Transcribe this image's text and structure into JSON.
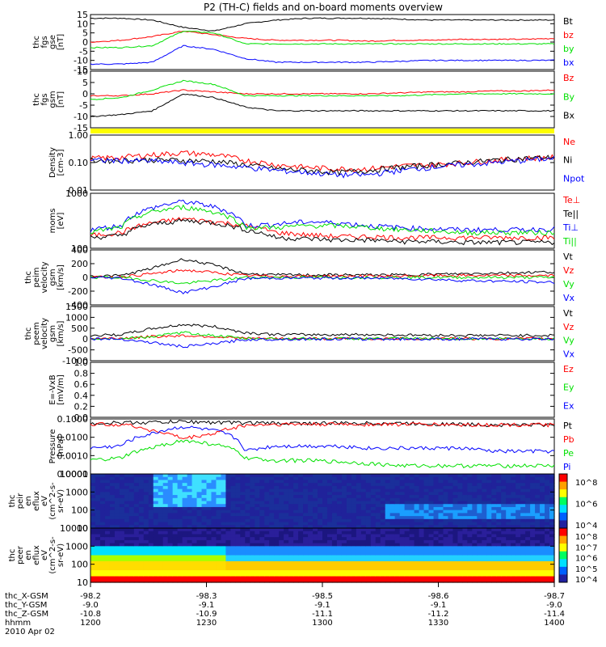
{
  "title": "P2 (TH-C) fields and on-board moments overview",
  "colors": {
    "black": "#000000",
    "red": "#ff0000",
    "green": "#00e000",
    "blue": "#0000ff",
    "yellow": "#ffff00",
    "grid": "#000000"
  },
  "chart_data": [
    {
      "type": "line",
      "ylabel": [
        "thc",
        "fgs",
        "gse",
        "[nT]"
      ],
      "yticks": [
        "15",
        "10",
        "5",
        "0",
        "-5",
        "-10",
        "-15"
      ],
      "ylim": [
        -15,
        15
      ],
      "series": [
        {
          "name": "Bt",
          "color": "black",
          "values": [
            13,
            13,
            12,
            8,
            6,
            10,
            12,
            13,
            13,
            13,
            12.5,
            12,
            12,
            12,
            12,
            12
          ]
        },
        {
          "name": "bz",
          "color": "red",
          "values": [
            0,
            1,
            3,
            6,
            4,
            2,
            1,
            1,
            1,
            0.5,
            1,
            1,
            1.5,
            1.5,
            1.5,
            2
          ]
        },
        {
          "name": "by",
          "color": "green",
          "values": [
            -3,
            -3,
            -2,
            6,
            5,
            -1,
            -1,
            -1,
            -1,
            -1,
            -1,
            -1,
            -1,
            -1,
            -1,
            -1
          ]
        },
        {
          "name": "bx",
          "color": "blue",
          "values": [
            -12,
            -12,
            -11,
            -2,
            -4,
            -9,
            -11,
            -11,
            -11,
            -11,
            -10.5,
            -10,
            -10,
            -10,
            -10,
            -10
          ]
        }
      ]
    },
    {
      "type": "line",
      "ylabel": [
        "thc",
        "fgs",
        "gsm",
        "[nT]"
      ],
      "yticks": [
        "10",
        "5",
        "0",
        "-5",
        "-10",
        "-15"
      ],
      "ylim": [
        -18,
        12
      ],
      "series": [
        {
          "name": "Bz",
          "color": "red",
          "values": [
            -1,
            -1,
            0,
            2,
            1,
            0,
            0,
            0,
            0,
            0,
            0.5,
            1,
            1,
            1.5,
            1.5,
            2
          ]
        },
        {
          "name": "By",
          "color": "green",
          "values": [
            -3,
            -2,
            2,
            7,
            5,
            -1,
            -1,
            -1,
            -1,
            -1,
            -1,
            -0.5,
            0,
            0,
            0,
            0
          ]
        },
        {
          "name": "Bx",
          "color": "black",
          "values": [
            -12,
            -11,
            -9,
            0,
            -2,
            -7,
            -9,
            -9,
            -9,
            -9,
            -9,
            -9,
            -9,
            -9,
            -9,
            -9
          ]
        }
      ]
    },
    {
      "type": "line",
      "scale": "log",
      "ylabel": [
        "Density",
        "[cm-3]"
      ],
      "yticks": [
        "1.00",
        "0.10",
        "0.01"
      ],
      "ylim": [
        0.01,
        1.5
      ],
      "series": [
        {
          "name": "Ne",
          "color": "red",
          "values": [
            0.18,
            0.2,
            0.25,
            0.3,
            0.25,
            0.15,
            0.1,
            0.08,
            0.07,
            0.07,
            0.09,
            0.1,
            0.12,
            0.15,
            0.18,
            0.2
          ]
        },
        {
          "name": "Ni",
          "color": "black",
          "values": [
            0.15,
            0.15,
            0.16,
            0.15,
            0.14,
            0.1,
            0.07,
            0.06,
            0.05,
            0.06,
            0.08,
            0.1,
            0.12,
            0.15,
            0.18,
            0.2
          ]
        },
        {
          "name": "Npot",
          "color": "blue",
          "values": [
            0.15,
            0.15,
            0.14,
            0.12,
            0.1,
            0.08,
            0.06,
            0.05,
            0.04,
            0.04,
            0.06,
            0.08,
            0.1,
            0.12,
            0.15,
            0.18
          ]
        }
      ]
    },
    {
      "type": "line",
      "scale": "log",
      "ylabel": [
        "moms",
        "[eV]"
      ],
      "yticks": [
        "1000",
        "100"
      ],
      "ylim": [
        30,
        8000
      ],
      "series": [
        {
          "name": "Te⊥",
          "color": "red",
          "values": [
            110,
            150,
            400,
            600,
            450,
            300,
            150,
            120,
            100,
            100,
            90,
            90,
            90,
            90,
            90,
            90
          ]
        },
        {
          "name": "Te||",
          "color": "black",
          "values": [
            90,
            110,
            350,
            500,
            400,
            200,
            90,
            80,
            70,
            70,
            60,
            60,
            55,
            55,
            55,
            55
          ]
        },
        {
          "name": "Ti⊥",
          "color": "blue",
          "values": [
            200,
            300,
            1800,
            3500,
            2000,
            300,
            350,
            450,
            400,
            300,
            250,
            220,
            200,
            200,
            200,
            220
          ]
        },
        {
          "name": "Ti||",
          "color": "green",
          "values": [
            150,
            250,
            1200,
            2000,
            1200,
            250,
            250,
            300,
            300,
            250,
            200,
            180,
            150,
            150,
            150,
            150
          ]
        }
      ]
    },
    {
      "type": "line",
      "ylabel": [
        "thc",
        "peim",
        "velocity",
        "gsm",
        "[km/s]"
      ],
      "yticks": [
        "400",
        "200",
        "0",
        "-200",
        "-400"
      ],
      "ylim": [
        -450,
        450
      ],
      "series": [
        {
          "name": "Vt",
          "color": "black",
          "values": [
            20,
            30,
            150,
            300,
            200,
            60,
            40,
            40,
            40,
            40,
            40,
            50,
            60,
            70,
            80,
            90
          ]
        },
        {
          "name": "Vz",
          "color": "red",
          "values": [
            0,
            10,
            60,
            120,
            80,
            30,
            20,
            20,
            20,
            20,
            20,
            30,
            30,
            30,
            30,
            30
          ]
        },
        {
          "name": "Vy",
          "color": "green",
          "values": [
            0,
            0,
            -50,
            -100,
            -50,
            0,
            0,
            0,
            0,
            0,
            0,
            0,
            0,
            0,
            0,
            0
          ]
        },
        {
          "name": "Vx",
          "color": "blue",
          "values": [
            0,
            -10,
            -120,
            -250,
            -150,
            -20,
            -10,
            -10,
            -10,
            -10,
            -20,
            -30,
            -50,
            -60,
            -70,
            -80
          ]
        }
      ]
    },
    {
      "type": "line",
      "ylabel": [
        "thc",
        "peem",
        "velocity",
        "gsm",
        "[km/s]"
      ],
      "yticks": [
        "1500",
        "1000",
        "500",
        "0",
        "-500",
        "-1000"
      ],
      "ylim": [
        -1100,
        1600
      ],
      "series": [
        {
          "name": "Vt",
          "color": "black",
          "values": [
            150,
            200,
            500,
            700,
            600,
            300,
            200,
            200,
            200,
            200,
            180,
            170,
            160,
            160,
            160,
            160
          ]
        },
        {
          "name": "Vz",
          "color": "red",
          "values": [
            0,
            20,
            100,
            150,
            100,
            20,
            0,
            0,
            0,
            0,
            0,
            0,
            0,
            0,
            0,
            0
          ]
        },
        {
          "name": "Vy",
          "color": "green",
          "values": [
            0,
            0,
            100,
            300,
            150,
            0,
            0,
            0,
            0,
            0,
            0,
            0,
            0,
            0,
            0,
            0
          ]
        },
        {
          "name": "Vx",
          "color": "blue",
          "values": [
            0,
            -20,
            -200,
            -400,
            -250,
            -50,
            -30,
            -20,
            -20,
            -20,
            -20,
            -20,
            -20,
            -20,
            -20,
            -20
          ]
        }
      ]
    },
    {
      "type": "line",
      "ylabel": [
        "E=-VxB",
        "[mV/m]"
      ],
      "yticks": [
        "1.0",
        "0.8",
        "0.6",
        "0.4",
        "0.2",
        "0.0"
      ],
      "ylim": [
        0,
        1
      ],
      "series": [
        {
          "name": "Ez",
          "color": "red",
          "values": []
        },
        {
          "name": "Ey",
          "color": "green",
          "values": []
        },
        {
          "name": "Ex",
          "color": "blue",
          "values": []
        }
      ]
    },
    {
      "type": "line",
      "scale": "log",
      "ylabel": [
        "Pressure",
        "[nPa]"
      ],
      "yticks": [
        "0.1000",
        "0.0100",
        "0.0010",
        "0.0001"
      ],
      "ylim": [
        0.0001,
        0.14
      ],
      "series": [
        {
          "name": "Pt",
          "color": "black",
          "values": [
            0.08,
            0.085,
            0.09,
            0.1,
            0.09,
            0.085,
            0.08,
            0.08,
            0.08,
            0.08,
            0.08,
            0.075,
            0.07,
            0.065,
            0.065,
            0.065
          ]
        },
        {
          "name": "Pb",
          "color": "red",
          "values": [
            0.07,
            0.07,
            0.03,
            0.01,
            0.02,
            0.06,
            0.07,
            0.07,
            0.07,
            0.07,
            0.07,
            0.07,
            0.065,
            0.065,
            0.065,
            0.065
          ]
        },
        {
          "name": "Pe",
          "color": "green",
          "values": [
            0.0006,
            0.0008,
            0.003,
            0.008,
            0.005,
            0.0008,
            0.0006,
            0.0006,
            0.0005,
            0.0004,
            0.0003,
            0.0003,
            0.0003,
            0.0003,
            0.0003,
            0.0003
          ]
        },
        {
          "name": "Pi",
          "color": "blue",
          "values": [
            0.003,
            0.004,
            0.02,
            0.05,
            0.03,
            0.002,
            0.004,
            0.004,
            0.004,
            0.003,
            0.003,
            0.003,
            0.003,
            0.002,
            0.002,
            0.002
          ]
        }
      ]
    },
    {
      "type": "heatmap",
      "ylabel": [
        "thc",
        "peir",
        "en",
        "eflux",
        "eV",
        "(cm^2-s-",
        "sr-eV)"
      ],
      "yticks": [
        "10000",
        "1000",
        "100",
        "10"
      ],
      "colorbar_ticks": [
        "10^8",
        "10^6",
        "10^4"
      ]
    },
    {
      "type": "heatmap",
      "ylabel": [
        "thc",
        "peer",
        "en",
        "eflux",
        "eV",
        "(cm^2-s-",
        "sr-eV)"
      ],
      "yticks": [
        "10000",
        "1000",
        "100",
        "10"
      ],
      "colorbar_ticks": [
        "10^8",
        "10^7",
        "10^6",
        "10^5",
        "10^4"
      ]
    }
  ],
  "xaxis": {
    "rows": [
      {
        "label": "thc_X-GSM",
        "values": [
          "-98.2",
          "-98.3",
          "-98.5",
          "-98.6",
          "-98.7"
        ]
      },
      {
        "label": "thc_Y-GSM",
        "values": [
          "-9.0",
          "-9.1",
          "-9.1",
          "-9.1",
          "-9.0"
        ]
      },
      {
        "label": "thc_Z-GSM",
        "values": [
          "-10.8",
          "-10.9",
          "-11.1",
          "-11.2",
          "-11.4"
        ]
      },
      {
        "label": "hhmm",
        "values": [
          "1200",
          "1230",
          "1300",
          "1330",
          "1400"
        ]
      }
    ],
    "date": "2010 Apr 02"
  }
}
